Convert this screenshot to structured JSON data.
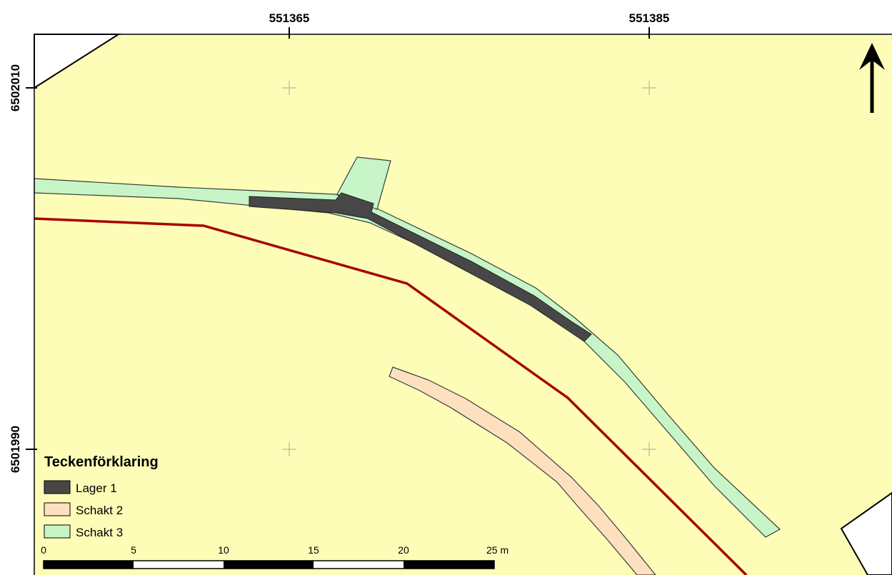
{
  "map": {
    "background_color": "#fefdb8",
    "outside_color": "#ffffff",
    "grid_cross_color": "#b8b8a0",
    "easting_ticks": [
      "551365",
      "551385"
    ],
    "northing_ticks": [
      "6502010",
      "6501990"
    ]
  },
  "north_arrow": {
    "icon": "north-arrow-icon"
  },
  "features": {
    "lager1": {
      "color": "#474747"
    },
    "schakt2": {
      "color": "#fde0c0"
    },
    "schakt3": {
      "color": "#c7f5c7"
    },
    "boundary_line": {
      "color": "#a80000"
    }
  },
  "legend": {
    "title": "Teckenförklaring",
    "items": [
      {
        "label": "Lager 1",
        "color": "#474747"
      },
      {
        "label": "Schakt 2",
        "color": "#fde0c0"
      },
      {
        "label": "Schakt 3",
        "color": "#c7f5c7"
      }
    ]
  },
  "scale_bar": {
    "labels": [
      "0",
      "5",
      "10",
      "15",
      "20",
      "25 m"
    ]
  }
}
